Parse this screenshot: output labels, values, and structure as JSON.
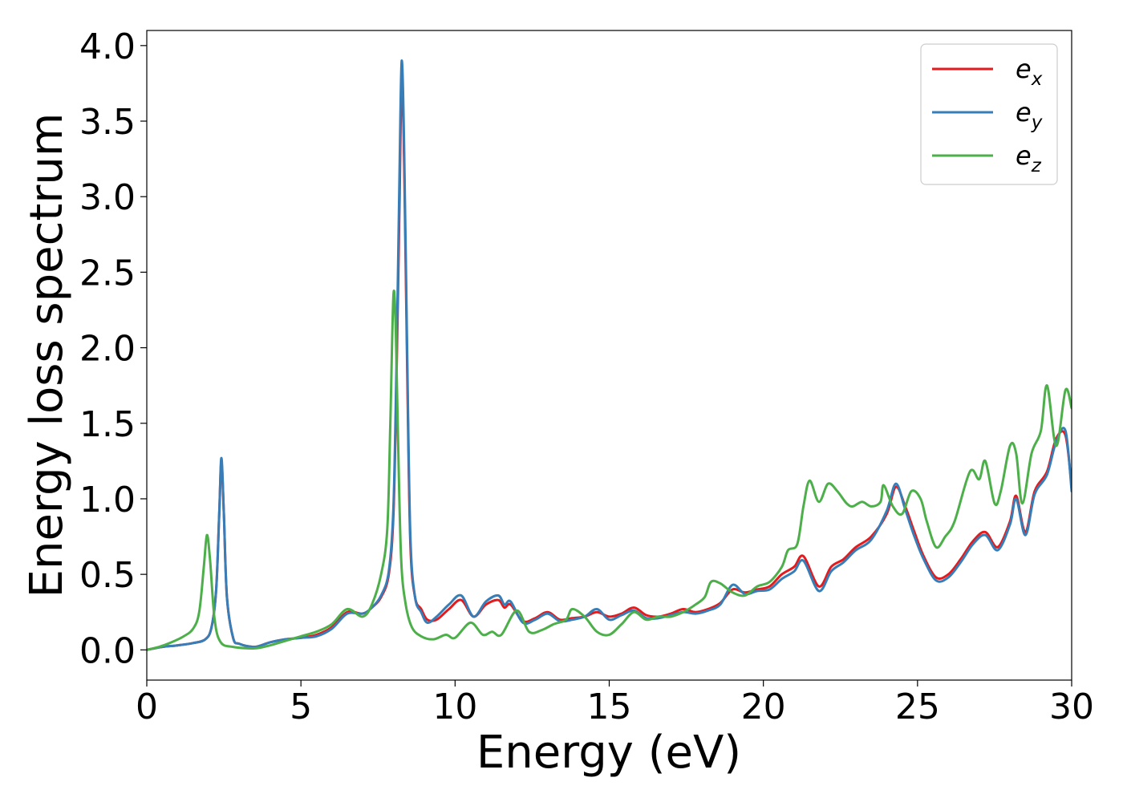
{
  "chart_data": {
    "type": "line",
    "title": "",
    "xlabel": "Energy (eV)",
    "ylabel": "Energy loss spectrum",
    "xlim": [
      0,
      30
    ],
    "ylim": [
      -0.2,
      4.1
    ],
    "xticks": [
      0,
      5,
      10,
      15,
      20,
      25,
      30
    ],
    "xtick_labels": [
      "0",
      "5",
      "10",
      "15",
      "20",
      "25",
      "30"
    ],
    "yticks": [
      0.0,
      0.5,
      1.0,
      1.5,
      2.0,
      2.5,
      3.0,
      3.5,
      4.0
    ],
    "ytick_labels": [
      "0.0",
      "0.5",
      "1.0",
      "1.5",
      "2.0",
      "2.5",
      "3.0",
      "3.5",
      "4.0"
    ],
    "grid": false,
    "legend_position": "top-right",
    "series": [
      {
        "name": "e_x",
        "name_base": "e",
        "name_sub": "x",
        "color": "#e41a1c",
        "points": [
          [
            0,
            0
          ],
          [
            0.5,
            0.02
          ],
          [
            1.0,
            0.03
          ],
          [
            1.5,
            0.045
          ],
          [
            1.9,
            0.07
          ],
          [
            2.1,
            0.15
          ],
          [
            2.25,
            0.4
          ],
          [
            2.35,
            0.9
          ],
          [
            2.42,
            1.24
          ],
          [
            2.5,
            0.9
          ],
          [
            2.6,
            0.35
          ],
          [
            2.8,
            0.08
          ],
          [
            3.0,
            0.04
          ],
          [
            3.5,
            0.02
          ],
          [
            4.0,
            0.05
          ],
          [
            4.5,
            0.07
          ],
          [
            5.0,
            0.08
          ],
          [
            5.5,
            0.1
          ],
          [
            6.0,
            0.15
          ],
          [
            6.5,
            0.25
          ],
          [
            7.0,
            0.24
          ],
          [
            7.3,
            0.28
          ],
          [
            7.6,
            0.35
          ],
          [
            7.85,
            0.5
          ],
          [
            8.0,
            0.9
          ],
          [
            8.1,
            1.8
          ],
          [
            8.2,
            3.0
          ],
          [
            8.27,
            3.78
          ],
          [
            8.35,
            3.2
          ],
          [
            8.45,
            1.8
          ],
          [
            8.55,
            0.7
          ],
          [
            8.7,
            0.35
          ],
          [
            8.9,
            0.27
          ],
          [
            9.1,
            0.2
          ],
          [
            9.4,
            0.2
          ],
          [
            9.8,
            0.27
          ],
          [
            10.2,
            0.33
          ],
          [
            10.6,
            0.22
          ],
          [
            11.0,
            0.3
          ],
          [
            11.4,
            0.33
          ],
          [
            11.6,
            0.28
          ],
          [
            11.8,
            0.3
          ],
          [
            12.2,
            0.19
          ],
          [
            12.6,
            0.21
          ],
          [
            13.0,
            0.25
          ],
          [
            13.4,
            0.2
          ],
          [
            13.8,
            0.21
          ],
          [
            14.2,
            0.22
          ],
          [
            14.6,
            0.25
          ],
          [
            15.0,
            0.22
          ],
          [
            15.4,
            0.24
          ],
          [
            15.8,
            0.28
          ],
          [
            16.2,
            0.23
          ],
          [
            16.6,
            0.22
          ],
          [
            17.0,
            0.24
          ],
          [
            17.4,
            0.27
          ],
          [
            17.8,
            0.25
          ],
          [
            18.2,
            0.27
          ],
          [
            18.6,
            0.31
          ],
          [
            19.0,
            0.4
          ],
          [
            19.4,
            0.38
          ],
          [
            19.8,
            0.4
          ],
          [
            20.2,
            0.42
          ],
          [
            20.6,
            0.5
          ],
          [
            21.0,
            0.55
          ],
          [
            21.3,
            0.62
          ],
          [
            21.8,
            0.42
          ],
          [
            22.2,
            0.55
          ],
          [
            22.6,
            0.6
          ],
          [
            23.0,
            0.68
          ],
          [
            23.5,
            0.75
          ],
          [
            24.0,
            0.9
          ],
          [
            24.3,
            1.08
          ],
          [
            24.6,
            0.95
          ],
          [
            24.9,
            0.78
          ],
          [
            25.2,
            0.62
          ],
          [
            25.6,
            0.48
          ],
          [
            26.0,
            0.5
          ],
          [
            26.4,
            0.6
          ],
          [
            26.8,
            0.72
          ],
          [
            27.2,
            0.78
          ],
          [
            27.6,
            0.68
          ],
          [
            28.0,
            0.85
          ],
          [
            28.2,
            1.02
          ],
          [
            28.5,
            0.78
          ],
          [
            28.8,
            1.05
          ],
          [
            29.2,
            1.18
          ],
          [
            29.5,
            1.4
          ],
          [
            29.8,
            1.42
          ],
          [
            30.0,
            1.08
          ]
        ]
      },
      {
        "name": "e_y",
        "name_base": "e",
        "name_sub": "y",
        "color": "#377eb8",
        "points": [
          [
            0,
            0
          ],
          [
            0.5,
            0.02
          ],
          [
            1.0,
            0.03
          ],
          [
            1.5,
            0.045
          ],
          [
            1.9,
            0.07
          ],
          [
            2.1,
            0.15
          ],
          [
            2.25,
            0.4
          ],
          [
            2.35,
            0.9
          ],
          [
            2.42,
            1.27
          ],
          [
            2.5,
            0.9
          ],
          [
            2.6,
            0.35
          ],
          [
            2.8,
            0.08
          ],
          [
            3.0,
            0.04
          ],
          [
            3.5,
            0.02
          ],
          [
            4.0,
            0.05
          ],
          [
            4.5,
            0.07
          ],
          [
            5.0,
            0.08
          ],
          [
            5.5,
            0.09
          ],
          [
            6.0,
            0.14
          ],
          [
            6.5,
            0.24
          ],
          [
            7.0,
            0.24
          ],
          [
            7.3,
            0.28
          ],
          [
            7.6,
            0.36
          ],
          [
            7.85,
            0.52
          ],
          [
            8.0,
            0.95
          ],
          [
            8.1,
            1.9
          ],
          [
            8.2,
            3.2
          ],
          [
            8.27,
            3.9
          ],
          [
            8.35,
            3.3
          ],
          [
            8.45,
            1.9
          ],
          [
            8.55,
            0.75
          ],
          [
            8.7,
            0.35
          ],
          [
            8.9,
            0.25
          ],
          [
            9.1,
            0.18
          ],
          [
            9.4,
            0.22
          ],
          [
            9.8,
            0.3
          ],
          [
            10.2,
            0.36
          ],
          [
            10.6,
            0.22
          ],
          [
            11.0,
            0.32
          ],
          [
            11.4,
            0.36
          ],
          [
            11.6,
            0.3
          ],
          [
            11.8,
            0.32
          ],
          [
            12.2,
            0.18
          ],
          [
            12.6,
            0.2
          ],
          [
            13.0,
            0.24
          ],
          [
            13.4,
            0.19
          ],
          [
            13.8,
            0.2
          ],
          [
            14.2,
            0.22
          ],
          [
            14.6,
            0.27
          ],
          [
            15.0,
            0.2
          ],
          [
            15.4,
            0.23
          ],
          [
            15.8,
            0.26
          ],
          [
            16.2,
            0.21
          ],
          [
            16.6,
            0.21
          ],
          [
            17.0,
            0.23
          ],
          [
            17.4,
            0.25
          ],
          [
            17.8,
            0.24
          ],
          [
            18.2,
            0.26
          ],
          [
            18.6,
            0.3
          ],
          [
            19.0,
            0.43
          ],
          [
            19.4,
            0.37
          ],
          [
            19.8,
            0.39
          ],
          [
            20.2,
            0.4
          ],
          [
            20.6,
            0.47
          ],
          [
            21.0,
            0.52
          ],
          [
            21.3,
            0.59
          ],
          [
            21.8,
            0.39
          ],
          [
            22.2,
            0.52
          ],
          [
            22.6,
            0.58
          ],
          [
            23.0,
            0.66
          ],
          [
            23.5,
            0.73
          ],
          [
            24.0,
            0.92
          ],
          [
            24.3,
            1.1
          ],
          [
            24.6,
            0.93
          ],
          [
            24.9,
            0.75
          ],
          [
            25.2,
            0.6
          ],
          [
            25.6,
            0.46
          ],
          [
            26.0,
            0.48
          ],
          [
            26.4,
            0.58
          ],
          [
            26.8,
            0.7
          ],
          [
            27.2,
            0.76
          ],
          [
            27.6,
            0.66
          ],
          [
            28.0,
            0.83
          ],
          [
            28.2,
            1.0
          ],
          [
            28.5,
            0.76
          ],
          [
            28.8,
            1.03
          ],
          [
            29.2,
            1.16
          ],
          [
            29.5,
            1.38
          ],
          [
            29.8,
            1.45
          ],
          [
            30.0,
            1.05
          ]
        ]
      },
      {
        "name": "e_z",
        "name_base": "e",
        "name_sub": "z",
        "color": "#4daf4a",
        "points": [
          [
            0,
            0
          ],
          [
            0.4,
            0.02
          ],
          [
            0.8,
            0.05
          ],
          [
            1.2,
            0.09
          ],
          [
            1.5,
            0.14
          ],
          [
            1.7,
            0.25
          ],
          [
            1.85,
            0.55
          ],
          [
            1.95,
            0.76
          ],
          [
            2.05,
            0.6
          ],
          [
            2.2,
            0.2
          ],
          [
            2.4,
            0.05
          ],
          [
            2.8,
            0.02
          ],
          [
            3.5,
            0.01
          ],
          [
            4.0,
            0.03
          ],
          [
            4.5,
            0.06
          ],
          [
            5.0,
            0.09
          ],
          [
            5.5,
            0.12
          ],
          [
            6.0,
            0.17
          ],
          [
            6.5,
            0.27
          ],
          [
            7.0,
            0.22
          ],
          [
            7.3,
            0.3
          ],
          [
            7.6,
            0.5
          ],
          [
            7.8,
            0.8
          ],
          [
            7.9,
            1.5
          ],
          [
            8.0,
            2.35
          ],
          [
            8.08,
            2.1
          ],
          [
            8.15,
            1.4
          ],
          [
            8.25,
            0.6
          ],
          [
            8.4,
            0.3
          ],
          [
            8.6,
            0.15
          ],
          [
            8.9,
            0.09
          ],
          [
            9.3,
            0.07
          ],
          [
            9.7,
            0.1
          ],
          [
            10.0,
            0.08
          ],
          [
            10.5,
            0.18
          ],
          [
            10.9,
            0.1
          ],
          [
            11.2,
            0.12
          ],
          [
            11.5,
            0.1
          ],
          [
            12.0,
            0.26
          ],
          [
            12.4,
            0.12
          ],
          [
            12.8,
            0.13
          ],
          [
            13.2,
            0.17
          ],
          [
            13.6,
            0.2
          ],
          [
            13.8,
            0.27
          ],
          [
            14.2,
            0.22
          ],
          [
            14.6,
            0.12
          ],
          [
            15.0,
            0.1
          ],
          [
            15.4,
            0.17
          ],
          [
            15.8,
            0.25
          ],
          [
            16.2,
            0.2
          ],
          [
            16.6,
            0.22
          ],
          [
            17.0,
            0.22
          ],
          [
            17.4,
            0.25
          ],
          [
            17.8,
            0.3
          ],
          [
            18.1,
            0.35
          ],
          [
            18.3,
            0.45
          ],
          [
            18.6,
            0.44
          ],
          [
            19.0,
            0.38
          ],
          [
            19.4,
            0.36
          ],
          [
            19.8,
            0.42
          ],
          [
            20.2,
            0.45
          ],
          [
            20.6,
            0.55
          ],
          [
            20.8,
            0.66
          ],
          [
            21.1,
            0.7
          ],
          [
            21.3,
            0.95
          ],
          [
            21.5,
            1.12
          ],
          [
            21.8,
            0.98
          ],
          [
            22.1,
            1.1
          ],
          [
            22.4,
            1.05
          ],
          [
            22.7,
            0.97
          ],
          [
            22.9,
            0.95
          ],
          [
            23.2,
            0.98
          ],
          [
            23.5,
            0.95
          ],
          [
            23.8,
            0.98
          ],
          [
            23.9,
            1.09
          ],
          [
            24.2,
            0.95
          ],
          [
            24.5,
            0.9
          ],
          [
            24.8,
            1.05
          ],
          [
            25.1,
            1.0
          ],
          [
            25.3,
            0.85
          ],
          [
            25.6,
            0.68
          ],
          [
            25.9,
            0.75
          ],
          [
            26.2,
            0.85
          ],
          [
            26.7,
            1.18
          ],
          [
            27.0,
            1.13
          ],
          [
            27.2,
            1.25
          ],
          [
            27.5,
            0.97
          ],
          [
            27.7,
            1.05
          ],
          [
            28.0,
            1.35
          ],
          [
            28.2,
            1.3
          ],
          [
            28.4,
            0.97
          ],
          [
            28.7,
            1.3
          ],
          [
            29.0,
            1.45
          ],
          [
            29.2,
            1.75
          ],
          [
            29.5,
            1.35
          ],
          [
            29.8,
            1.72
          ],
          [
            30.0,
            1.6
          ]
        ]
      }
    ]
  }
}
